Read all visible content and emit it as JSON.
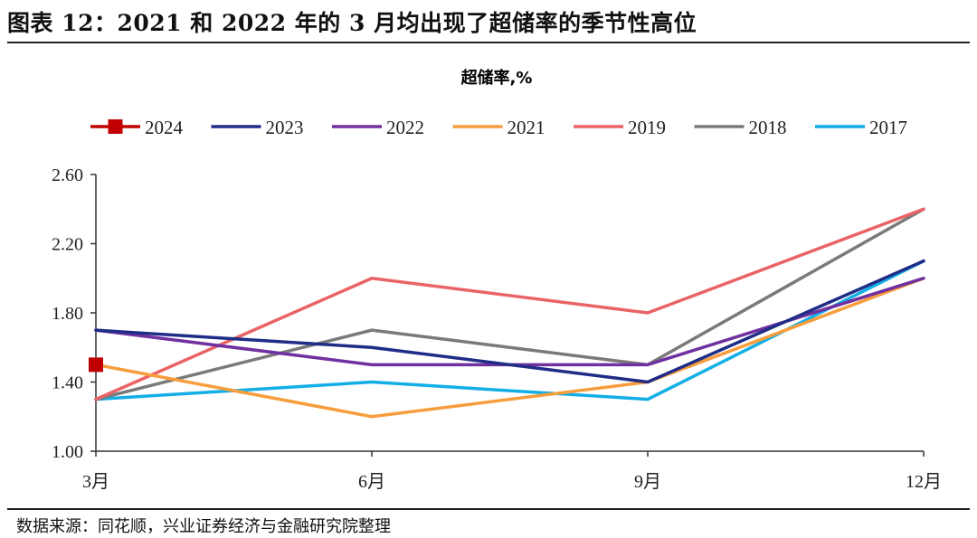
{
  "figure": {
    "title": "图表 12：2021 和 2022 年的 3 月均出现了超储率的季节性高位",
    "source": "数据来源：同花顺，兴业证券经济与金融研究院整理"
  },
  "chart_data": {
    "type": "line",
    "title": "超储率,%",
    "categories": [
      "3月",
      "6月",
      "9月",
      "12月"
    ],
    "ylim": [
      1.0,
      2.6
    ],
    "yticks": [
      "1.00",
      "1.40",
      "1.80",
      "2.20",
      "2.60"
    ],
    "ytick_values": [
      1.0,
      1.4,
      1.8,
      2.2,
      2.6
    ],
    "grid": false,
    "legend_position": "top",
    "series": [
      {
        "name": "2024",
        "color": "#c00000",
        "marker": "square",
        "values": [
          1.5,
          null,
          null,
          null
        ]
      },
      {
        "name": "2023",
        "color": "#1f2d86",
        "values": [
          1.7,
          1.6,
          1.4,
          2.1
        ]
      },
      {
        "name": "2022",
        "color": "#7030a0",
        "values": [
          1.7,
          1.5,
          1.5,
          2.0
        ]
      },
      {
        "name": "2021",
        "color": "#f79d3c",
        "values": [
          1.5,
          1.2,
          1.4,
          2.0
        ]
      },
      {
        "name": "2019",
        "color": "#ea6466",
        "values": [
          1.3,
          2.0,
          1.8,
          2.4
        ]
      },
      {
        "name": "2018",
        "color": "#7a7a7a",
        "values": [
          1.3,
          1.7,
          1.5,
          2.4
        ]
      },
      {
        "name": "2017",
        "color": "#14aee6",
        "values": [
          1.3,
          1.4,
          1.3,
          2.1
        ]
      }
    ]
  }
}
